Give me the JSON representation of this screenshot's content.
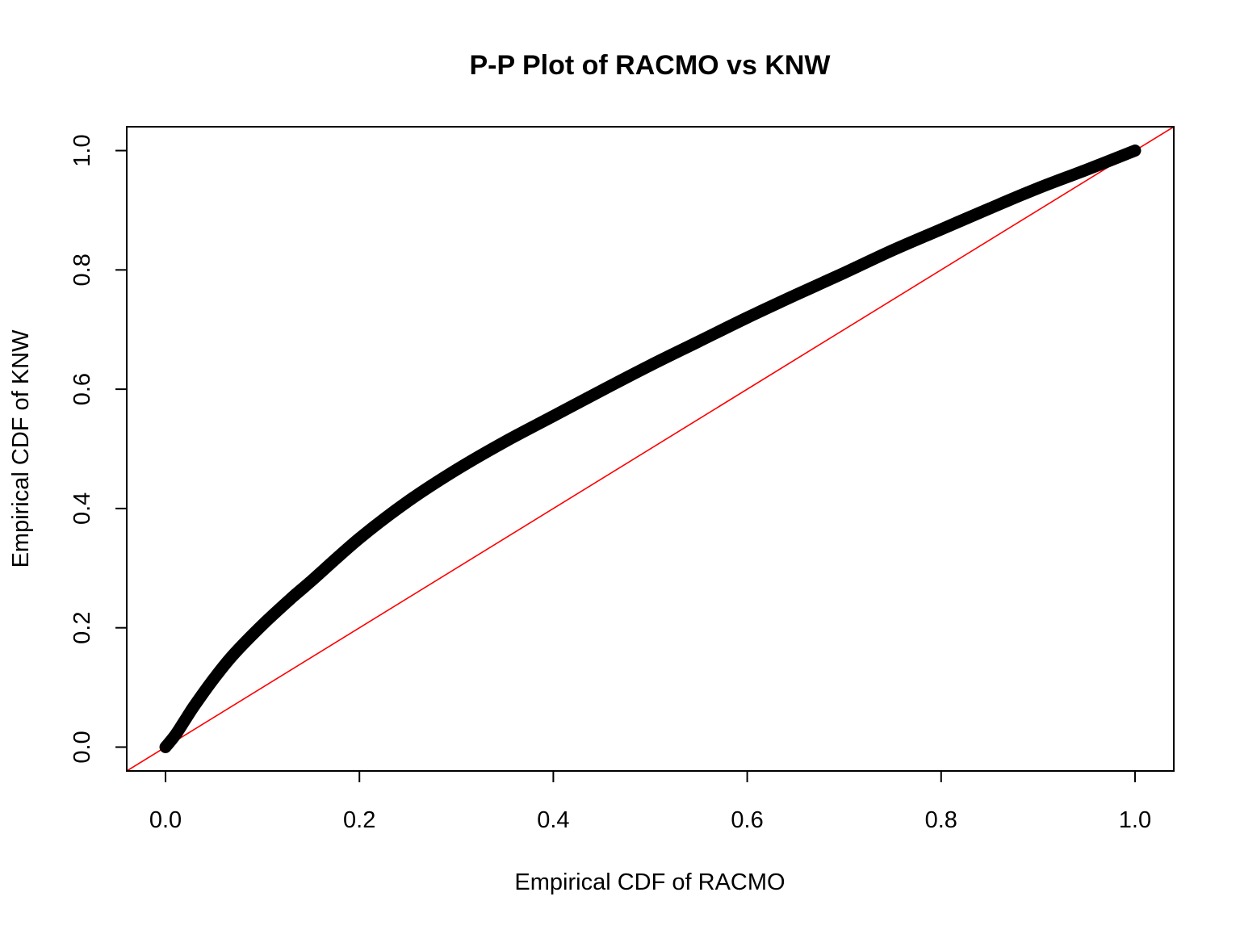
{
  "chart_data": {
    "type": "scatter",
    "title": "P-P Plot of RACMO vs KNW",
    "xlabel": "Empirical CDF of RACMO",
    "ylabel": "Empirical CDF of KNW",
    "xlim": [
      -0.04,
      1.04
    ],
    "ylim": [
      -0.04,
      1.04
    ],
    "x_ticks": [
      0.0,
      0.2,
      0.4,
      0.6,
      0.8,
      1.0
    ],
    "x_tick_labels": [
      "0.0",
      "0.2",
      "0.4",
      "0.6",
      "0.8",
      "1.0"
    ],
    "y_ticks": [
      0.0,
      0.2,
      0.4,
      0.6,
      0.8,
      1.0
    ],
    "y_tick_labels": [
      "0.0",
      "0.2",
      "0.4",
      "0.6",
      "0.8",
      "1.0"
    ],
    "grid": false,
    "legend": "none",
    "series": [
      {
        "color": "#000000",
        "x": [
          0.0,
          0.01,
          0.02,
          0.03,
          0.05,
          0.07,
          0.1,
          0.13,
          0.15,
          0.2,
          0.25,
          0.3,
          0.35,
          0.4,
          0.45,
          0.5,
          0.55,
          0.6,
          0.65,
          0.7,
          0.75,
          0.8,
          0.85,
          0.9,
          0.95,
          1.0
        ],
        "y": [
          0.0,
          0.02,
          0.045,
          0.07,
          0.115,
          0.155,
          0.205,
          0.25,
          0.278,
          0.35,
          0.412,
          0.465,
          0.512,
          0.555,
          0.598,
          0.64,
          0.68,
          0.72,
          0.758,
          0.795,
          0.833,
          0.868,
          0.903,
          0.937,
          0.968,
          1.0
        ]
      }
    ],
    "reference_line": {
      "type": "y=x",
      "color": "#ff0000"
    }
  }
}
